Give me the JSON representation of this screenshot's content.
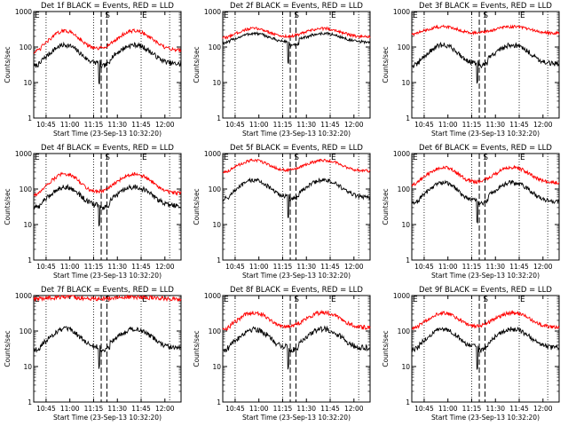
{
  "figure": {
    "x_axis_label": "Start Time (23-Sep-13 10:32:20)",
    "y_axis_label": "Counts/sec",
    "y_tick_labels": [
      "1",
      "10",
      "100",
      "1000"
    ],
    "x_tick_labels": [
      "10:45",
      "11:00",
      "11:15",
      "11:30",
      "11:45",
      "12:00"
    ],
    "marker_labels": [
      "E",
      "S",
      "E"
    ],
    "colors": {
      "events": "#000000",
      "lld": "#ff0000",
      "background": "#ffffff"
    }
  },
  "chart_data": [
    {
      "type": "line",
      "title": "Det 1f BLACK = Events, RED = LLD",
      "yscale": "log",
      "ylim": [
        1,
        1000
      ],
      "series": [
        {
          "color": "#000000",
          "base": 60,
          "amp": 1.0,
          "noise": 0.07
        },
        {
          "color": "#ff0000",
          "base": 150,
          "amp": 1.0,
          "noise": 0.05
        }
      ]
    },
    {
      "type": "line",
      "title": "Det 2f BLACK = Events, RED = LLD",
      "yscale": "log",
      "ylim": [
        1,
        1000
      ],
      "series": [
        {
          "color": "#000000",
          "base": 180,
          "amp": 0.45,
          "noise": 0.04
        },
        {
          "color": "#ff0000",
          "base": 250,
          "amp": 0.45,
          "noise": 0.04
        }
      ]
    },
    {
      "type": "line",
      "title": "Det 3f BLACK = Events, RED = LLD",
      "yscale": "log",
      "ylim": [
        1,
        1000
      ],
      "series": [
        {
          "color": "#000000",
          "base": 60,
          "amp": 1.0,
          "noise": 0.07
        },
        {
          "color": "#ff0000",
          "base": 300,
          "amp": 0.35,
          "noise": 0.04
        }
      ]
    },
    {
      "type": "line",
      "title": "Det 4f BLACK = Events, RED = LLD",
      "yscale": "log",
      "ylim": [
        1,
        1000
      ],
      "series": [
        {
          "color": "#000000",
          "base": 60,
          "amp": 1.0,
          "noise": 0.07
        },
        {
          "color": "#ff0000",
          "base": 140,
          "amp": 1.0,
          "noise": 0.05
        }
      ]
    },
    {
      "type": "line",
      "title": "Det 5f BLACK = Events, RED = LLD",
      "yscale": "log",
      "ylim": [
        1,
        1000
      ],
      "series": [
        {
          "color": "#000000",
          "base": 100,
          "amp": 0.9,
          "noise": 0.06
        },
        {
          "color": "#ff0000",
          "base": 450,
          "amp": 0.55,
          "noise": 0.04
        }
      ]
    },
    {
      "type": "line",
      "title": "Det 6f BLACK = Events, RED = LLD",
      "yscale": "log",
      "ylim": [
        1,
        1000
      ],
      "series": [
        {
          "color": "#000000",
          "base": 80,
          "amp": 1.0,
          "noise": 0.06
        },
        {
          "color": "#ff0000",
          "base": 240,
          "amp": 0.8,
          "noise": 0.05
        }
      ]
    },
    {
      "type": "line",
      "title": "Det 7f BLACK = Events, RED = LLD",
      "yscale": "log",
      "ylim": [
        1,
        1000
      ],
      "series": [
        {
          "color": "#000000",
          "base": 60,
          "amp": 1.0,
          "noise": 0.07
        },
        {
          "color": "#ff0000",
          "base": 850,
          "amp": 0.1,
          "noise": 0.06
        }
      ]
    },
    {
      "type": "line",
      "title": "Det 8f BLACK = Events, RED = LLD",
      "yscale": "log",
      "ylim": [
        1,
        1000
      ],
      "series": [
        {
          "color": "#000000",
          "base": 60,
          "amp": 1.0,
          "noise": 0.08
        },
        {
          "color": "#ff0000",
          "base": 200,
          "amp": 0.8,
          "noise": 0.06
        }
      ]
    },
    {
      "type": "line",
      "title": "Det 9f BLACK = Events, RED = LLD",
      "yscale": "log",
      "ylim": [
        1,
        1000
      ],
      "series": [
        {
          "color": "#000000",
          "base": 60,
          "amp": 1.0,
          "noise": 0.07
        },
        {
          "color": "#ff0000",
          "base": 200,
          "amp": 0.75,
          "noise": 0.05
        }
      ]
    }
  ]
}
